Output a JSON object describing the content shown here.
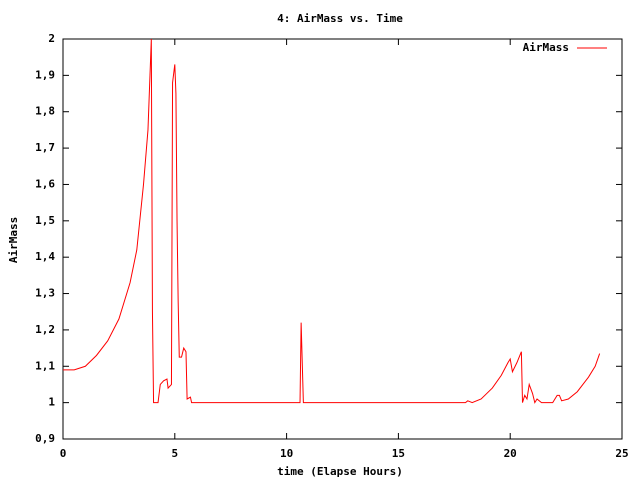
{
  "chart_data": {
    "type": "line",
    "title": "4: AirMass vs. Time",
    "xlabel": "time (Elapse Hours)",
    "ylabel": "AirMass",
    "legend": "upper right",
    "grid": false,
    "xlim": [
      0,
      25
    ],
    "xticks": [
      0,
      5,
      10,
      15,
      20,
      25
    ],
    "ylim": [
      0.9,
      2
    ],
    "yticks": [
      {
        "value": 0.9,
        "label": "0,9"
      },
      1,
      {
        "value": 1.1,
        "label": "1,1"
      },
      {
        "value": 1.2,
        "label": "1,2"
      },
      {
        "value": 1.3,
        "label": "1,3"
      },
      {
        "value": 1.4,
        "label": "1,4"
      },
      {
        "value": 1.5,
        "label": "1,5"
      },
      {
        "value": 1.6,
        "label": "1,6"
      },
      {
        "value": 1.7,
        "label": "1,7"
      },
      {
        "value": 1.8,
        "label": "1,8"
      },
      {
        "value": 1.9,
        "label": "1,9"
      },
      2
    ],
    "x": [
      0,
      0.5,
      1,
      1.5,
      2,
      2.5,
      3,
      3.3,
      3.6,
      3.8,
      3.95,
      4.0,
      4.05,
      4.25,
      4.35,
      4.5,
      4.65,
      4.7,
      4.85,
      4.9,
      5.0,
      5.05,
      5.1,
      5.15,
      5.2,
      5.3,
      5.4,
      5.5,
      5.55,
      5.7,
      5.75,
      10.6,
      10.65,
      10.75,
      18,
      18.1,
      18.3,
      18.7,
      19.2,
      19.6,
      19.9,
      20.0,
      20.1,
      20.3,
      20.5,
      20.55,
      20.65,
      20.75,
      20.85,
      21.0,
      21.1,
      21.2,
      21.4,
      21.9,
      22.1,
      22.2,
      22.3,
      22.6,
      23,
      23.5,
      23.8,
      24
    ],
    "series": [
      {
        "name": "AirMass",
        "color": "#ff0000",
        "values": [
          1.09,
          1.09,
          1.1,
          1.13,
          1.17,
          1.23,
          1.33,
          1.42,
          1.6,
          1.75,
          2.0,
          1.25,
          1.0,
          1.0,
          1.05,
          1.06,
          1.065,
          1.04,
          1.05,
          1.88,
          1.93,
          1.85,
          1.5,
          1.28,
          1.125,
          1.125,
          1.15,
          1.14,
          1.01,
          1.015,
          1.0,
          1.0,
          1.22,
          1.0,
          1.0,
          1.005,
          1.0,
          1.01,
          1.04,
          1.075,
          1.11,
          1.12,
          1.085,
          1.11,
          1.14,
          1.0,
          1.02,
          1.01,
          1.05,
          1.025,
          1.0,
          1.01,
          1.0,
          1.0,
          1.02,
          1.02,
          1.005,
          1.01,
          1.03,
          1.07,
          1.1,
          1.135
        ]
      }
    ]
  }
}
